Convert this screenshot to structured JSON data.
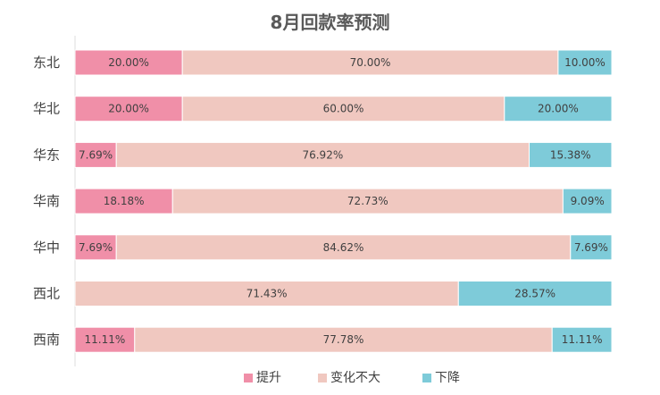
{
  "chart_data": {
    "type": "bar",
    "orientation": "horizontal",
    "stacked": "percent",
    "title": "8月回款率预测",
    "categories": [
      "东北",
      "华北",
      "华东",
      "华南",
      "华中",
      "西北",
      "西南"
    ],
    "series": [
      {
        "name": "提升",
        "color": "#F08FA8",
        "values": [
          0.2,
          0.2,
          0.0769,
          0.1818,
          0.0769,
          0,
          0.1111
        ],
        "labels": [
          "20.00%",
          "20.00%",
          "7.69%",
          "18.18%",
          "7.69%",
          "",
          "11.11%"
        ]
      },
      {
        "name": "变化不大",
        "color": "#F0C8C0",
        "values": [
          0.7,
          0.6,
          0.7692,
          0.7273,
          0.8462,
          0.7143,
          0.7778
        ],
        "labels": [
          "70.00%",
          "60.00%",
          "76.92%",
          "72.73%",
          "84.62%",
          "71.43%",
          "77.78%"
        ]
      },
      {
        "name": "下降",
        "color": "#7ECBD9",
        "values": [
          0.1,
          0.2,
          0.1538,
          0.0909,
          0.0769,
          0.2857,
          0.1111
        ],
        "labels": [
          "10.00%",
          "20.00%",
          "15.38%",
          "9.09%",
          "7.69%",
          "28.57%",
          "11.11%"
        ]
      }
    ],
    "xlim": [
      0,
      1
    ],
    "grid": false,
    "legend_position": "bottom"
  }
}
